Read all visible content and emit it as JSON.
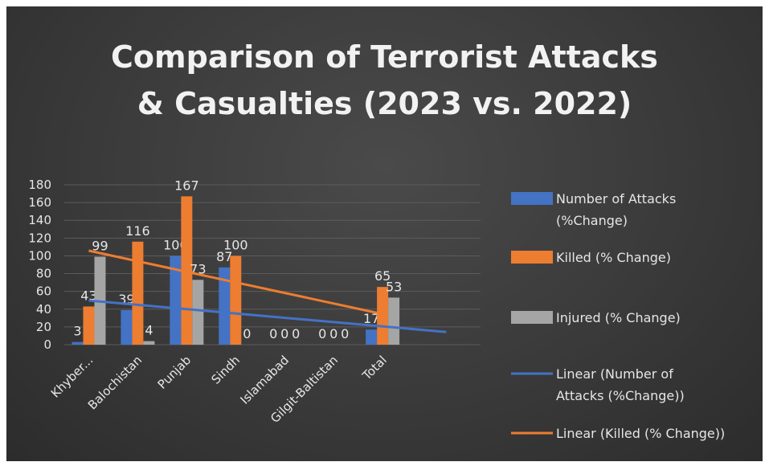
{
  "chart_data": {
    "type": "bar",
    "title": "Comparison of Terrorist Attacks & Casualties (2023 vs. 2022)",
    "title_lines": [
      "Comparison of Terrorist Attacks",
      "& Casualties (2023 vs. 2022)"
    ],
    "categories": [
      "Khyber...",
      "Balochistan",
      "Punjab",
      "Sindh",
      "Islamabad",
      "Gilgit-Baltistan",
      "Total"
    ],
    "ylim": [
      0,
      180
    ],
    "yticks": [
      0,
      20,
      40,
      60,
      80,
      100,
      120,
      140,
      160,
      180
    ],
    "grid": true,
    "legend_position": "right",
    "series": [
      {
        "name": "Number of Attacks (%Change)",
        "color": "#4472c4",
        "values": [
          3,
          39,
          100,
          87,
          0,
          0,
          17
        ]
      },
      {
        "name": "Killed (% Change)",
        "color": "#ed7d31",
        "values": [
          43,
          116,
          167,
          100,
          0,
          0,
          65
        ]
      },
      {
        "name": "Injured (% Change)",
        "color": "#a5a5a5",
        "values": [
          99,
          4,
          73,
          0,
          0,
          0,
          53
        ]
      }
    ],
    "trendlines": [
      {
        "name": "Linear (Number of Attacks (%Change))",
        "color": "#4472c4",
        "type": "linear",
        "of_series": 0
      },
      {
        "name": "Linear (Killed (% Change))",
        "color": "#ed7d31",
        "type": "linear",
        "of_series": 1
      }
    ],
    "legend_lines": [
      [
        "Number of Attacks",
        "(%Change)"
      ],
      [
        "Killed (% Change)"
      ],
      [
        "Injured (% Change)"
      ],
      [
        "Linear (Number of",
        "Attacks (%Change))"
      ],
      [
        "Linear (Killed (% Change))"
      ]
    ]
  }
}
